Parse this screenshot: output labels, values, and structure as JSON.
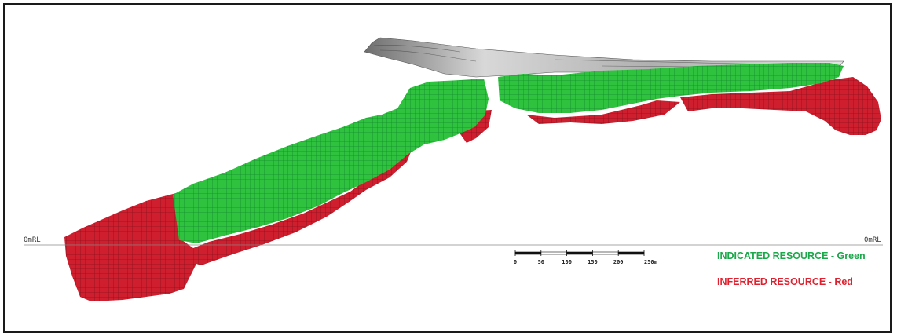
{
  "diagram": {
    "reference_level": {
      "left_label": "0mRL",
      "right_label": "0mRL"
    },
    "scale_bar": {
      "ticks": [
        "0",
        "50",
        "100",
        "150",
        "200",
        "250m"
      ],
      "max_value": 250,
      "unit": "m"
    },
    "legend": {
      "indicated": {
        "label": "INDICATED RESOURCE - Green",
        "color": "#1aa84a"
      },
      "inferred": {
        "label": "INFERRED RESOURCE - Red",
        "color": "#e0202e"
      }
    },
    "colors": {
      "indicated_fill": "#2ec43e",
      "indicated_grid": "#0f7a2a",
      "inferred_fill": "#cc1c2c",
      "inferred_grid": "#7a0a18",
      "pit_surface": "#b8b8b8"
    }
  }
}
